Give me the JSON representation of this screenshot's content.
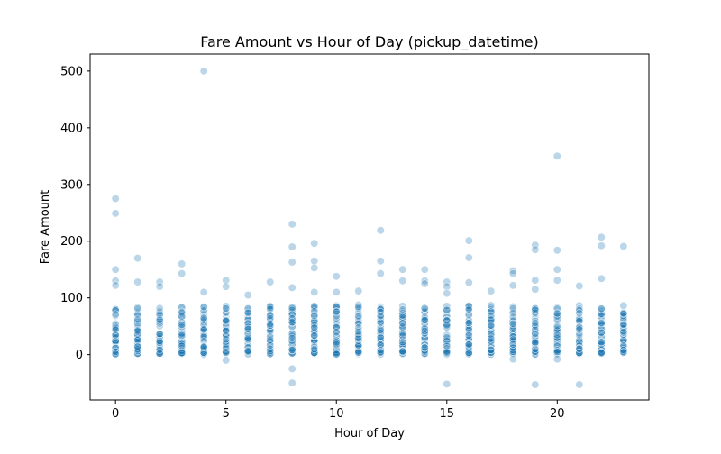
{
  "chart_data": {
    "type": "scatter",
    "title": "Fare Amount vs Hour of Day (pickup_datetime)",
    "xlabel": "Hour of Day",
    "ylabel": "Fare Amount",
    "xlim": [
      -1.15,
      24.15
    ],
    "ylim": [
      -80,
      530
    ],
    "xticks": [
      0,
      5,
      10,
      15,
      20
    ],
    "yticks": [
      0,
      100,
      200,
      300,
      400,
      500
    ],
    "grid": false,
    "point_color": "#1f77b4",
    "point_alpha": 0.3,
    "outliers": [
      {
        "x": 0,
        "y": 275
      },
      {
        "x": 0,
        "y": 249
      },
      {
        "x": 0,
        "y": 150
      },
      {
        "x": 0,
        "y": 130
      },
      {
        "x": 0,
        "y": 122
      },
      {
        "x": 1,
        "y": 170
      },
      {
        "x": 1,
        "y": 128
      },
      {
        "x": 2,
        "y": 128
      },
      {
        "x": 2,
        "y": 120
      },
      {
        "x": 3,
        "y": 160
      },
      {
        "x": 3,
        "y": 143
      },
      {
        "x": 4,
        "y": 500
      },
      {
        "x": 4,
        "y": 110
      },
      {
        "x": 5,
        "y": 131
      },
      {
        "x": 5,
        "y": 120
      },
      {
        "x": 5,
        "y": -10
      },
      {
        "x": 6,
        "y": 105
      },
      {
        "x": 7,
        "y": 128
      },
      {
        "x": 8,
        "y": 230
      },
      {
        "x": 8,
        "y": 190
      },
      {
        "x": 8,
        "y": 163
      },
      {
        "x": 8,
        "y": 118
      },
      {
        "x": 8,
        "y": -25
      },
      {
        "x": 8,
        "y": -50
      },
      {
        "x": 9,
        "y": 196
      },
      {
        "x": 9,
        "y": 165
      },
      {
        "x": 9,
        "y": 153
      },
      {
        "x": 9,
        "y": 110
      },
      {
        "x": 10,
        "y": 138
      },
      {
        "x": 10,
        "y": 110
      },
      {
        "x": 11,
        "y": 112
      },
      {
        "x": 12,
        "y": 219
      },
      {
        "x": 12,
        "y": 165
      },
      {
        "x": 12,
        "y": 143
      },
      {
        "x": 13,
        "y": 150
      },
      {
        "x": 13,
        "y": 130
      },
      {
        "x": 14,
        "y": 150
      },
      {
        "x": 14,
        "y": 130
      },
      {
        "x": 14,
        "y": 125
      },
      {
        "x": 15,
        "y": 128
      },
      {
        "x": 15,
        "y": 120
      },
      {
        "x": 15,
        "y": 108
      },
      {
        "x": 15,
        "y": -52
      },
      {
        "x": 16,
        "y": 201
      },
      {
        "x": 16,
        "y": 171
      },
      {
        "x": 16,
        "y": 127
      },
      {
        "x": 17,
        "y": 112
      },
      {
        "x": 18,
        "y": 148
      },
      {
        "x": 18,
        "y": 143
      },
      {
        "x": 18,
        "y": 122
      },
      {
        "x": 18,
        "y": -8
      },
      {
        "x": 19,
        "y": 193
      },
      {
        "x": 19,
        "y": 185
      },
      {
        "x": 19,
        "y": 131
      },
      {
        "x": 19,
        "y": 115
      },
      {
        "x": 19,
        "y": -53
      },
      {
        "x": 20,
        "y": 350
      },
      {
        "x": 20,
        "y": 184
      },
      {
        "x": 20,
        "y": 150
      },
      {
        "x": 20,
        "y": 131
      },
      {
        "x": 20,
        "y": -8
      },
      {
        "x": 21,
        "y": 121
      },
      {
        "x": 21,
        "y": -53
      },
      {
        "x": 22,
        "y": 207
      },
      {
        "x": 22,
        "y": 192
      },
      {
        "x": 22,
        "y": 134
      },
      {
        "x": 23,
        "y": 191
      }
    ],
    "dense_range": {
      "min": 0,
      "max": 100
    }
  }
}
